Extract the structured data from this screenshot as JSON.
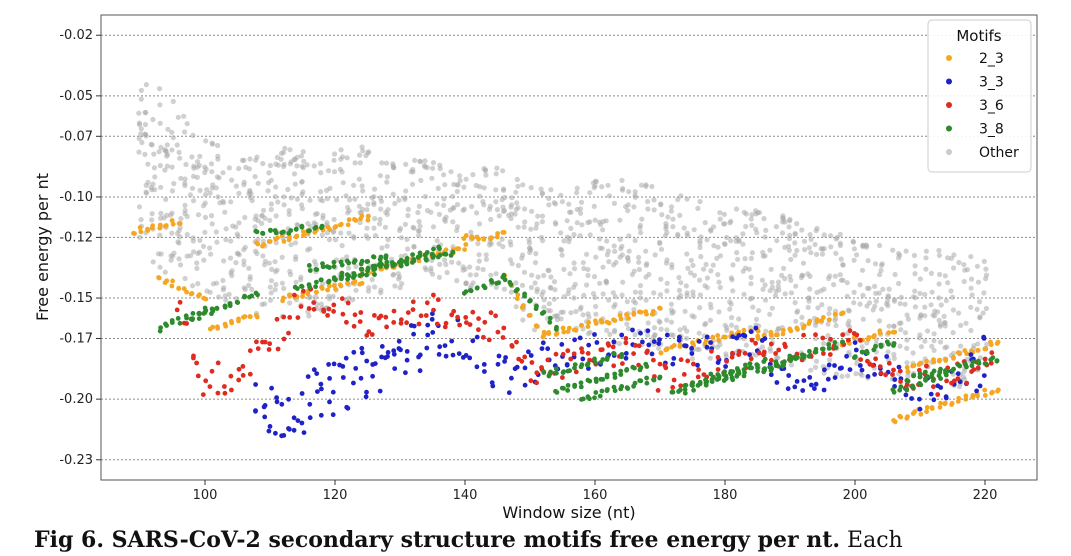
{
  "chart_data": {
    "type": "scatter",
    "xlabel": "Window size (nt)",
    "ylabel": "Free energy per nt",
    "xlim": [
      84,
      228
    ],
    "ylim": [
      -0.24,
      -0.01
    ],
    "x_ticks": [
      100,
      120,
      140,
      160,
      180,
      200,
      220
    ],
    "y_ticks": [
      -0.02,
      -0.05,
      -0.07,
      -0.1,
      -0.12,
      -0.15,
      -0.17,
      -0.2,
      -0.23
    ],
    "y_tick_labels": [
      "-0.02",
      "-0.05",
      "-0.07",
      "-0.10",
      "-0.12",
      "-0.15",
      "-0.17",
      "-0.20",
      "-0.23"
    ],
    "grid": "horizontal dashed",
    "legend": {
      "title": "Motifs",
      "placement": "top-right"
    },
    "series": [
      {
        "name": "Other",
        "color": "#a9a9a9",
        "bands": [
          [
            90,
            -0.13,
            -0.04
          ],
          [
            95,
            -0.14,
            -0.05
          ],
          [
            100,
            -0.15,
            -0.07
          ],
          [
            105,
            -0.155,
            -0.08
          ],
          [
            110,
            -0.16,
            -0.075
          ],
          [
            115,
            -0.16,
            -0.075
          ],
          [
            120,
            -0.155,
            -0.075
          ],
          [
            125,
            -0.15,
            -0.075
          ],
          [
            130,
            -0.145,
            -0.08
          ],
          [
            135,
            -0.14,
            -0.08
          ],
          [
            140,
            -0.145,
            -0.085
          ],
          [
            145,
            -0.15,
            -0.085
          ],
          [
            150,
            -0.165,
            -0.095
          ],
          [
            155,
            -0.17,
            -0.095
          ],
          [
            160,
            -0.17,
            -0.09
          ],
          [
            165,
            -0.175,
            -0.09
          ],
          [
            170,
            -0.175,
            -0.095
          ],
          [
            175,
            -0.18,
            -0.1
          ],
          [
            180,
            -0.18,
            -0.105
          ],
          [
            185,
            -0.185,
            -0.105
          ],
          [
            190,
            -0.185,
            -0.11
          ],
          [
            195,
            -0.19,
            -0.115
          ],
          [
            200,
            -0.19,
            -0.12
          ],
          [
            205,
            -0.19,
            -0.125
          ],
          [
            210,
            -0.195,
            -0.125
          ],
          [
            215,
            -0.195,
            -0.125
          ],
          [
            220,
            -0.19,
            -0.13
          ]
        ]
      },
      {
        "name": "2_3",
        "color": "#f5a623",
        "segments": [
          [
            89,
            -0.117,
            96,
            -0.112
          ],
          [
            93,
            -0.14,
            100,
            -0.15
          ],
          [
            101,
            -0.165,
            108,
            -0.158
          ],
          [
            108,
            -0.124,
            125,
            -0.11
          ],
          [
            112,
            -0.15,
            124,
            -0.142
          ],
          [
            124,
            -0.138,
            140,
            -0.125
          ],
          [
            140,
            -0.12,
            146,
            -0.119
          ],
          [
            146,
            -0.14,
            152,
            -0.168
          ],
          [
            152,
            -0.168,
            170,
            -0.156
          ],
          [
            170,
            -0.176,
            185,
            -0.166
          ],
          [
            185,
            -0.17,
            198,
            -0.158
          ],
          [
            198,
            -0.172,
            206,
            -0.166
          ],
          [
            206,
            -0.21,
            222,
            -0.195
          ],
          [
            208,
            -0.185,
            222,
            -0.172
          ]
        ]
      },
      {
        "name": "3_3",
        "color": "#1e22c8",
        "bands": [
          [
            108,
            -0.22,
            -0.192
          ],
          [
            113,
            -0.22,
            -0.19
          ],
          [
            118,
            -0.212,
            -0.184
          ],
          [
            123,
            -0.203,
            -0.176
          ],
          [
            128,
            -0.195,
            -0.169
          ],
          [
            133,
            -0.186,
            -0.16
          ],
          [
            136,
            -0.178,
            -0.155
          ],
          [
            140,
            -0.182,
            -0.162
          ],
          [
            144,
            -0.195,
            -0.175
          ],
          [
            148,
            -0.198,
            -0.178
          ],
          [
            152,
            -0.19,
            -0.172
          ],
          [
            158,
            -0.186,
            -0.168
          ],
          [
            164,
            -0.182,
            -0.166
          ],
          [
            168,
            -0.178,
            -0.164
          ],
          [
            175,
            -0.188,
            -0.17
          ],
          [
            180,
            -0.184,
            -0.168
          ],
          [
            185,
            -0.18,
            -0.164
          ],
          [
            190,
            -0.2,
            -0.188
          ],
          [
            195,
            -0.196,
            -0.185
          ],
          [
            200,
            -0.185,
            -0.172
          ],
          [
            205,
            -0.195,
            -0.178
          ],
          [
            210,
            -0.205,
            -0.188
          ],
          [
            215,
            -0.2,
            -0.182
          ],
          [
            220,
            -0.196,
            -0.168
          ]
        ]
      },
      {
        "name": "3_6",
        "color": "#e02b20",
        "bands": [
          [
            96,
            -0.165,
            -0.15
          ],
          [
            100,
            -0.2,
            -0.185
          ],
          [
            104,
            -0.197,
            -0.178
          ],
          [
            108,
            -0.187,
            -0.165
          ],
          [
            112,
            -0.172,
            -0.155
          ],
          [
            115,
            -0.16,
            -0.142
          ],
          [
            118,
            -0.16,
            -0.148
          ],
          [
            122,
            -0.163,
            -0.15
          ],
          [
            126,
            -0.172,
            -0.158
          ],
          [
            130,
            -0.166,
            -0.154
          ],
          [
            135,
            -0.162,
            -0.148
          ],
          [
            140,
            -0.168,
            -0.154
          ],
          [
            145,
            -0.173,
            -0.158
          ],
          [
            150,
            -0.194,
            -0.18
          ],
          [
            155,
            -0.19,
            -0.176
          ],
          [
            160,
            -0.186,
            -0.172
          ],
          [
            166,
            -0.182,
            -0.168
          ],
          [
            170,
            -0.196,
            -0.182
          ],
          [
            176,
            -0.192,
            -0.178
          ],
          [
            182,
            -0.186,
            -0.17
          ],
          [
            188,
            -0.182,
            -0.168
          ],
          [
            194,
            -0.18,
            -0.166
          ],
          [
            200,
            -0.178,
            -0.166
          ],
          [
            205,
            -0.192,
            -0.182
          ],
          [
            210,
            -0.2,
            -0.184
          ],
          [
            216,
            -0.196,
            -0.18
          ],
          [
            221,
            -0.19,
            -0.176
          ]
        ]
      },
      {
        "name": "3_8",
        "color": "#2d8a2d",
        "segments": [
          [
            93,
            -0.165,
            101,
            -0.155
          ],
          [
            98,
            -0.16,
            108,
            -0.148
          ],
          [
            108,
            -0.118,
            118,
            -0.115
          ],
          [
            114,
            -0.145,
            126,
            -0.137
          ],
          [
            116,
            -0.135,
            128,
            -0.13
          ],
          [
            120,
            -0.14,
            136,
            -0.126
          ],
          [
            126,
            -0.135,
            138,
            -0.128
          ],
          [
            140,
            -0.148,
            146,
            -0.14
          ],
          [
            146,
            -0.14,
            154,
            -0.164
          ],
          [
            152,
            -0.188,
            164,
            -0.178
          ],
          [
            154,
            -0.196,
            168,
            -0.184
          ],
          [
            158,
            -0.2,
            170,
            -0.189
          ],
          [
            172,
            -0.198,
            182,
            -0.186
          ],
          [
            174,
            -0.193,
            186,
            -0.181
          ],
          [
            180,
            -0.19,
            192,
            -0.178
          ],
          [
            186,
            -0.186,
            198,
            -0.172
          ],
          [
            200,
            -0.178,
            206,
            -0.172
          ],
          [
            206,
            -0.196,
            214,
            -0.188
          ],
          [
            208,
            -0.19,
            222,
            -0.18
          ]
        ]
      }
    ]
  },
  "caption": {
    "bold": "Fig 6. SARS-CoV-2 secondary structure motifs free energy per nt.",
    "rest": " Each"
  }
}
